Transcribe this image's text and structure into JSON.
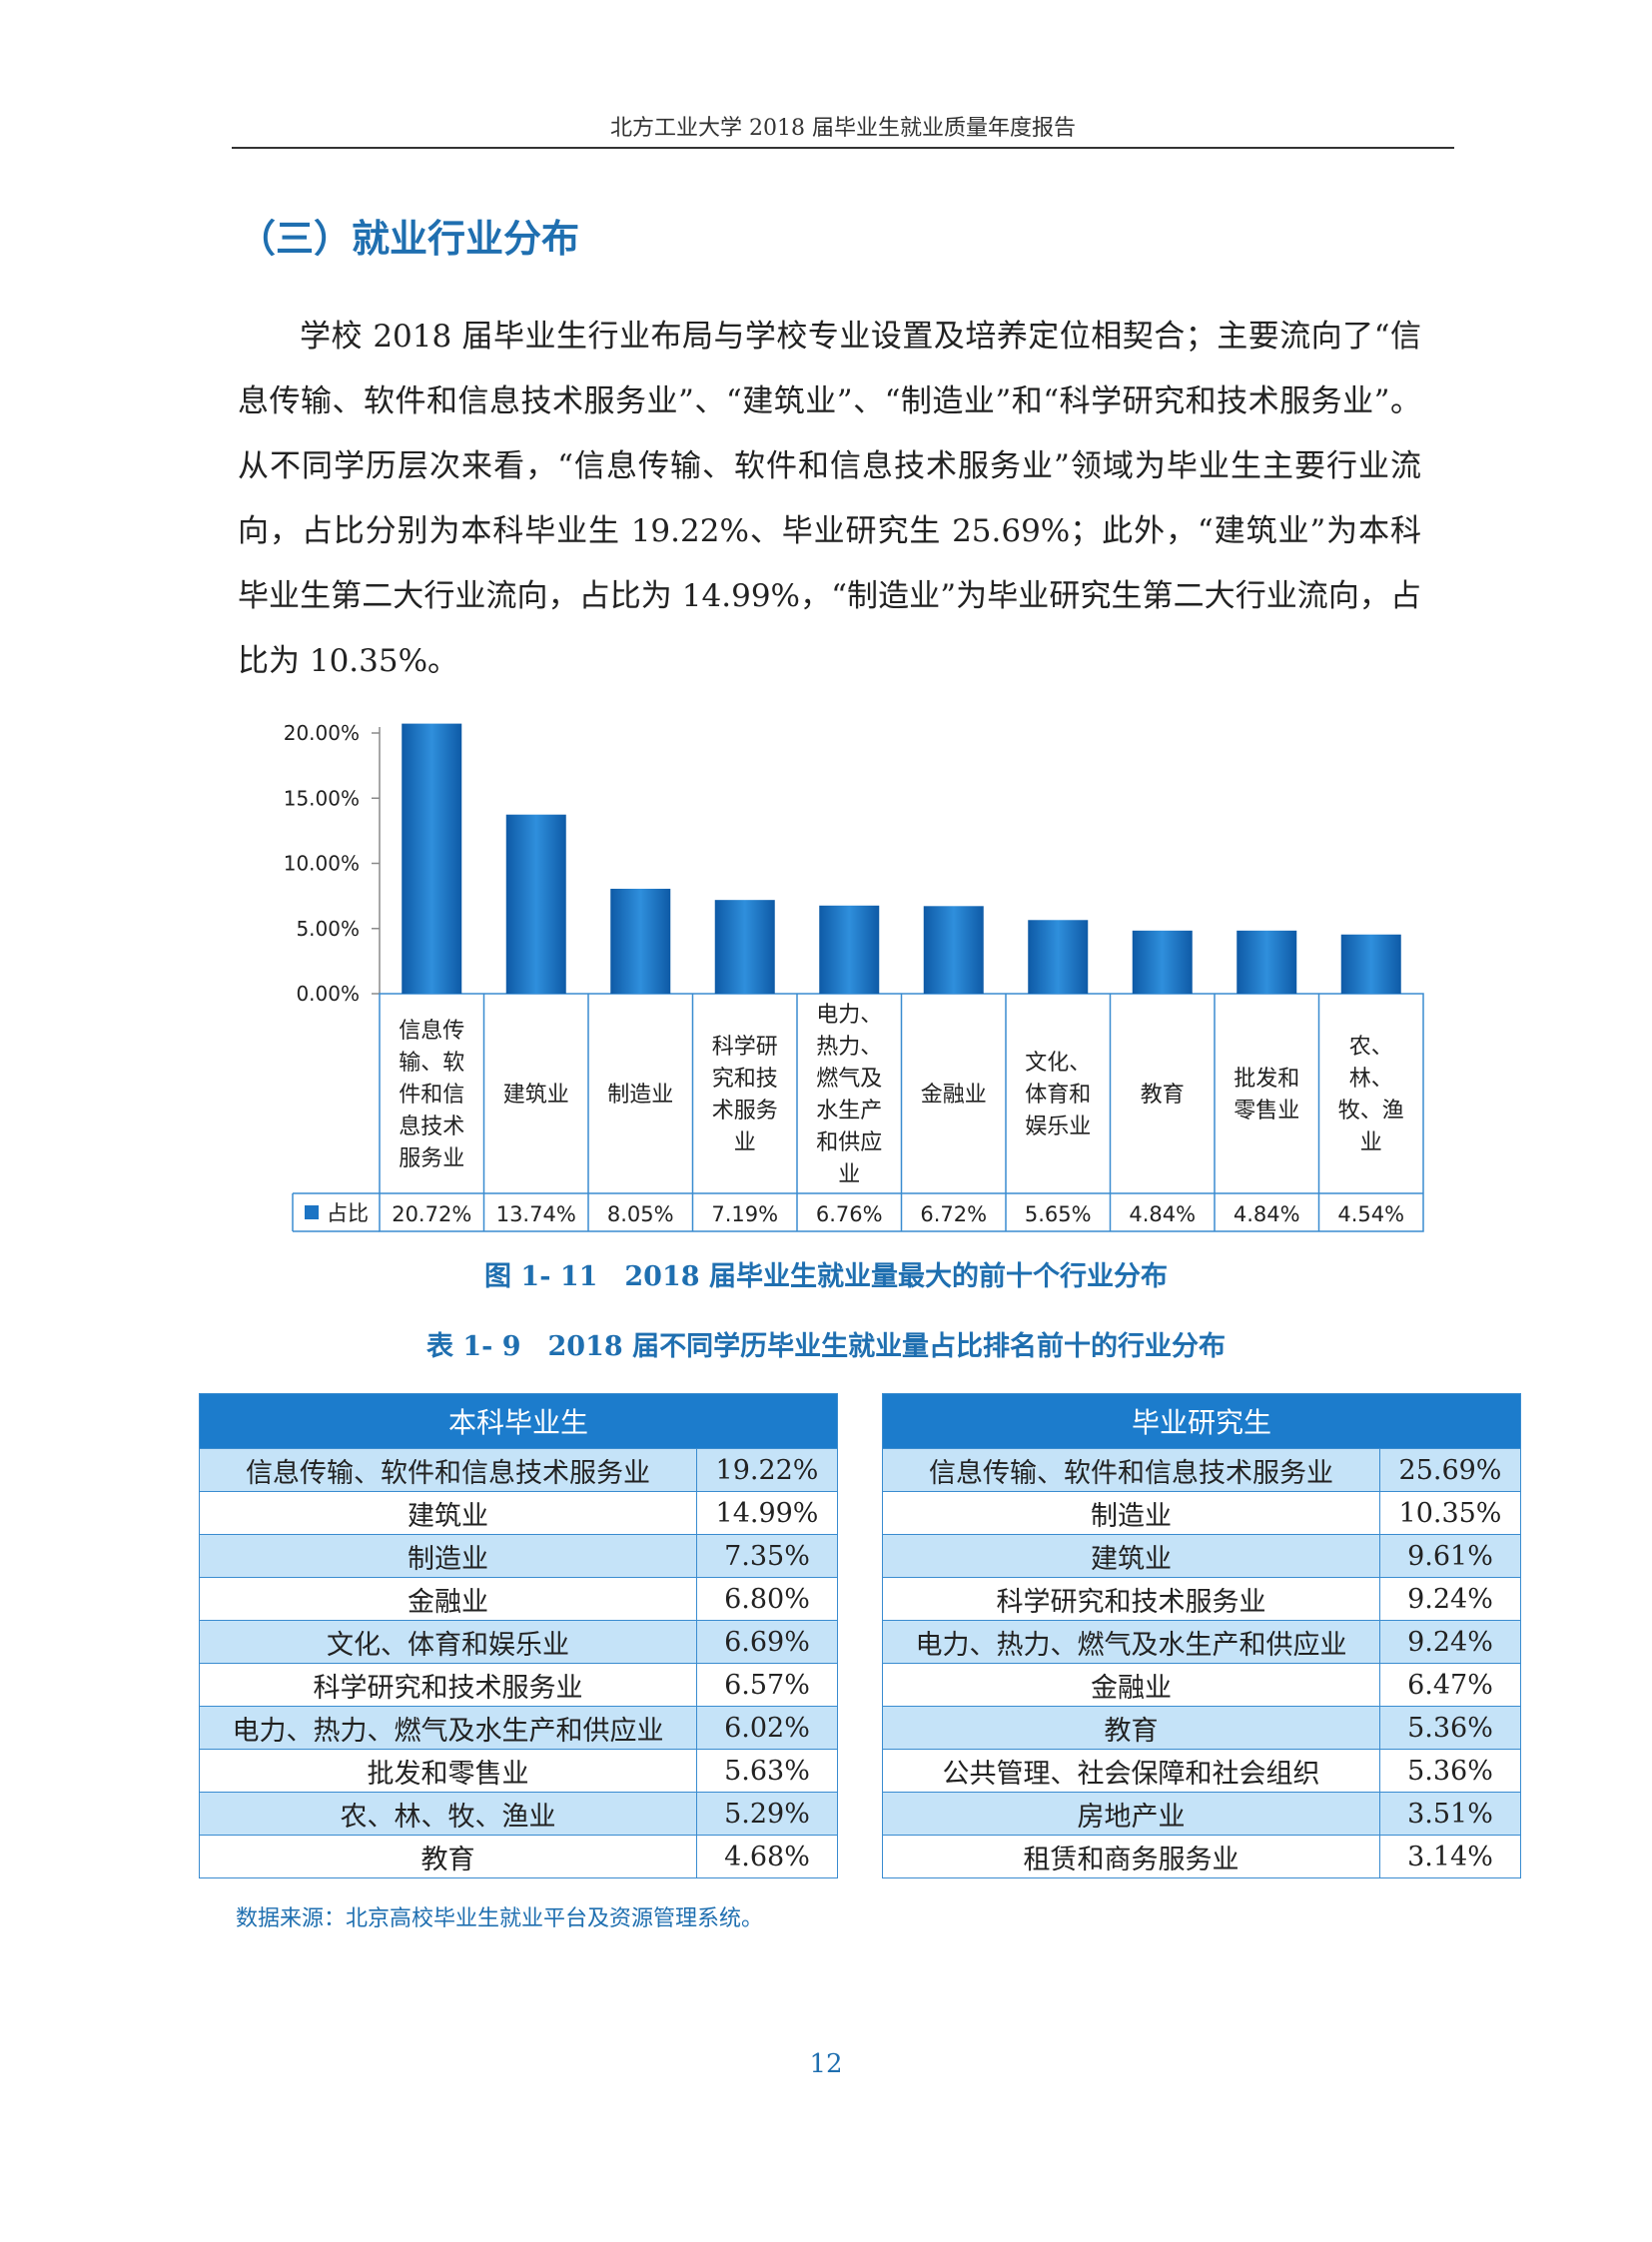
{
  "header": {
    "title": "北方工业大学 2018 届毕业生就业质量年度报告"
  },
  "section": {
    "title": "（三）就业行业分布"
  },
  "paragraph": "学校 2018 届毕业生行业布局与学校专业设置及培养定位相契合；主要流向了“信息传输、软件和信息技术服务业”、“建筑业”、“制造业”和“科学研究和技术服务业”。从不同学历层次来看，“信息传输、软件和信息技术服务业”领域为毕业生主要行业流向，占比分别为本科毕业生 19.22%、毕业研究生 25.69%；此外，“建筑业”为本科毕业生第二大行业流向，占比为 14.99%，“制造业”为毕业研究生第二大行业流向，占比为 10.35%。",
  "chart_data": {
    "type": "bar",
    "categories": [
      [
        "信息传",
        "输、软",
        "件和信",
        "息技术",
        "服务业"
      ],
      [
        "建筑业"
      ],
      [
        "制造业"
      ],
      [
        "科学研",
        "究和技",
        "术服务",
        "业"
      ],
      [
        "电力、",
        "热力、",
        "燃气及",
        "水生产",
        "和供应",
        "业"
      ],
      [
        "金融业"
      ],
      [
        "文化、",
        "体育和",
        "娱乐业"
      ],
      [
        "教育"
      ],
      [
        "批发和",
        "零售业"
      ],
      [
        "农、",
        "林、",
        "牧、渔",
        "业"
      ]
    ],
    "series": [
      {
        "name": "占比",
        "values": [
          20.72,
          13.74,
          8.05,
          7.19,
          6.76,
          6.72,
          5.65,
          4.84,
          4.84,
          4.54
        ]
      }
    ],
    "value_labels": [
      "20.72%",
      "13.74%",
      "8.05%",
      "7.19%",
      "6.76%",
      "6.72%",
      "5.65%",
      "4.84%",
      "4.84%",
      "4.54%"
    ],
    "yticks": [
      "0.00%",
      "5.00%",
      "10.00%",
      "15.00%",
      "20.00%"
    ],
    "ylim": [
      0,
      20
    ],
    "legend": "bottom-left (data table)",
    "bar_color": "#1c74c4"
  },
  "figure_caption": "图 1- 11　2018 届毕业生就业量最大的前十个行业分布",
  "table_caption": "表 1- 9　2018 届不同学历毕业生就业量占比排名前十的行业分布",
  "tables": {
    "undergrad": {
      "header": "本科毕业生",
      "rows": [
        {
          "name": "信息传输、软件和信息技术服务业",
          "value": "19.22%"
        },
        {
          "name": "建筑业",
          "value": "14.99%"
        },
        {
          "name": "制造业",
          "value": "7.35%"
        },
        {
          "name": "金融业",
          "value": "6.80%"
        },
        {
          "name": "文化、体育和娱乐业",
          "value": "6.69%"
        },
        {
          "name": "科学研究和技术服务业",
          "value": "6.57%"
        },
        {
          "name": "电力、热力、燃气及水生产和供应业",
          "value": "6.02%"
        },
        {
          "name": "批发和零售业",
          "value": "5.63%"
        },
        {
          "name": "农、林、牧、渔业",
          "value": "5.29%"
        },
        {
          "name": "教育",
          "value": "4.68%"
        }
      ]
    },
    "graduate": {
      "header": "毕业研究生",
      "rows": [
        {
          "name": "信息传输、软件和信息技术服务业",
          "value": "25.69%"
        },
        {
          "name": "制造业",
          "value": "10.35%"
        },
        {
          "name": "建筑业",
          "value": "9.61%"
        },
        {
          "name": "科学研究和技术服务业",
          "value": "9.24%"
        },
        {
          "name": "电力、热力、燃气及水生产和供应业",
          "value": "9.24%"
        },
        {
          "name": "金融业",
          "value": "6.47%"
        },
        {
          "name": "教育",
          "value": "5.36%"
        },
        {
          "name": "公共管理、社会保障和社会组织",
          "value": "5.36%"
        },
        {
          "name": "房地产业",
          "value": "3.51%"
        },
        {
          "name": "租赁和商务服务业",
          "value": "3.14%"
        }
      ]
    }
  },
  "source_note": "数据来源：北京高校毕业生就业平台及资源管理系统。",
  "page_number": "12"
}
